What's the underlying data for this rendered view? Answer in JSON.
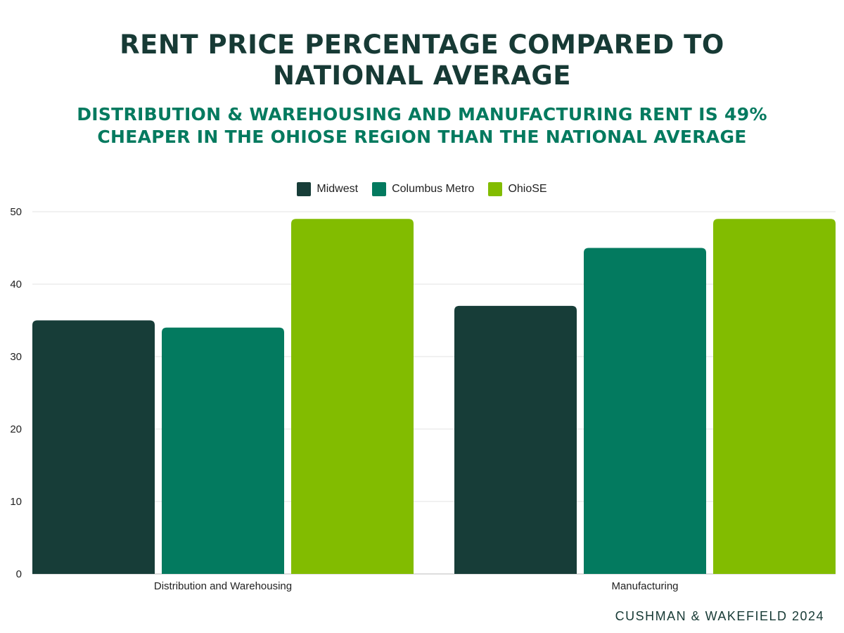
{
  "title": "RENT PRICE PERCENTAGE COMPARED TO NATIONAL AVERAGE",
  "subtitle": "DISTRIBUTION & WAREHOUSING AND MANUFACTURING RENT IS 49% CHEAPER IN THE OHIOSE REGION THAN THE NATIONAL AVERAGE",
  "footer": "CUSHMAN & WAKEFIELD 2024",
  "colors": {
    "title": "#173a35",
    "subtitle": "#047a5f"
  },
  "chart_data": {
    "type": "bar",
    "categories": [
      "Distribution and Warehousing",
      "Manufacturing"
    ],
    "series": [
      {
        "name": "Midwest",
        "color": "#173d38",
        "values": [
          35,
          37
        ]
      },
      {
        "name": "Columbus Metro",
        "color": "#037a5f",
        "values": [
          34,
          45
        ]
      },
      {
        "name": "OhioSE",
        "color": "#82bc00",
        "values": [
          49,
          49
        ]
      }
    ],
    "ylim": [
      0,
      50
    ],
    "yticks": [
      0,
      10,
      20,
      30,
      40,
      50
    ],
    "grid": true,
    "legend": "top-center",
    "xlabel": "",
    "ylabel": ""
  }
}
